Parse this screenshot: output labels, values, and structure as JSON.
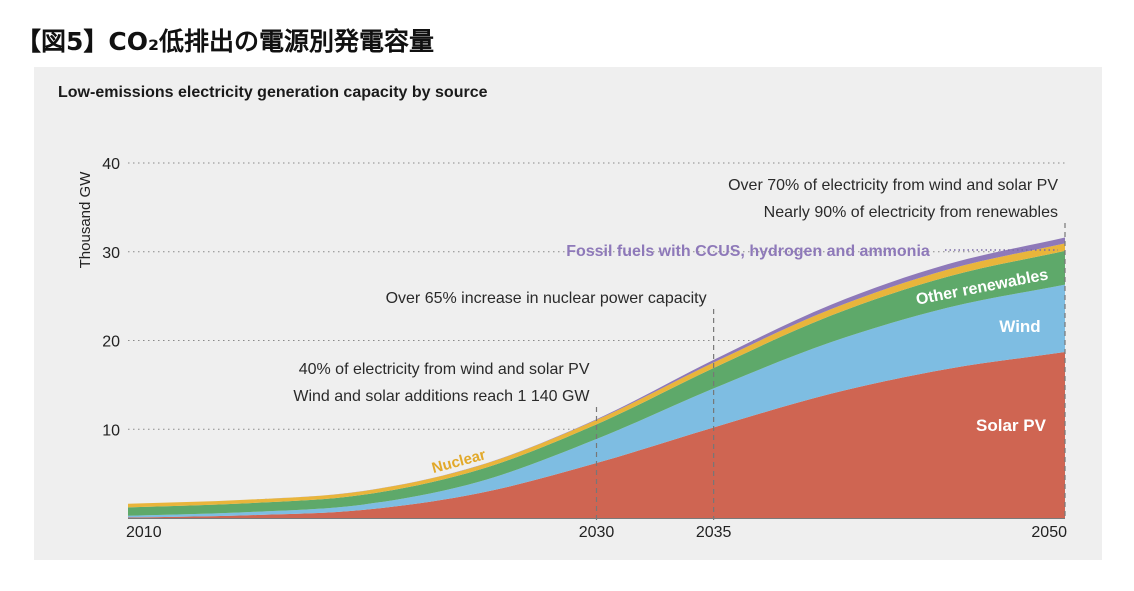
{
  "page": {
    "title": "【図5】CO₂低排出の電源別発電容量"
  },
  "chart_data": {
    "type": "area",
    "stacked": true,
    "title": "Low-emissions electricity generation capacity by source",
    "ylabel": "Thousand GW",
    "xlabel": "",
    "ylim": [
      0,
      40
    ],
    "xlim": [
      2010,
      2050
    ],
    "yticks": [
      10,
      20,
      30,
      40
    ],
    "xticks": [
      2010,
      2030,
      2035,
      2050
    ],
    "grid": "horizontal dotted",
    "x": [
      2010,
      2015,
      2020,
      2025,
      2030,
      2035,
      2040,
      2045,
      2050
    ],
    "series": [
      {
        "name": "Solar PV",
        "color": "#cf6552",
        "values": [
          0.05,
          0.3,
          0.9,
          2.8,
          6.2,
          10.2,
          14.0,
          16.8,
          18.7
        ]
      },
      {
        "name": "Wind",
        "color": "#7ebde2",
        "values": [
          0.2,
          0.35,
          0.6,
          1.3,
          2.7,
          4.4,
          5.8,
          6.9,
          7.6
        ]
      },
      {
        "name": "Other renewables",
        "color": "#5ea96a",
        "values": [
          0.95,
          1.0,
          1.1,
          1.35,
          1.65,
          2.3,
          3.0,
          3.5,
          3.8
        ]
      },
      {
        "name": "Nuclear",
        "color": "#e9b53b",
        "values": [
          0.4,
          0.4,
          0.42,
          0.45,
          0.5,
          0.62,
          0.72,
          0.8,
          0.85
        ]
      },
      {
        "name": "Fossil fuels with CCUS, hydrogen and ammonia",
        "color": "#8e79b9",
        "values": [
          0.0,
          0.0,
          0.01,
          0.03,
          0.08,
          0.3,
          0.5,
          0.6,
          0.65
        ]
      }
    ],
    "series_labels": [
      {
        "text": "Solar PV",
        "color": "#ffffff"
      },
      {
        "text": "Wind",
        "color": "#ffffff"
      },
      {
        "text": "Other renewables",
        "color": "#ffffff"
      },
      {
        "text": "Nuclear",
        "color": "#e2a92a"
      },
      {
        "text": "Fossil fuels with CCUS, hydrogen and ammonia",
        "color": "#8e79b9"
      }
    ],
    "markers": [
      {
        "year": 2030,
        "lines": [
          "40% of electricity from wind and solar PV",
          "Wind and solar additions reach 1 140 GW"
        ]
      },
      {
        "year": 2035,
        "lines": [
          "Over 65% increase in nuclear power capacity"
        ]
      },
      {
        "year": 2050,
        "lines": [
          "Over 70% of electricity from wind and solar PV",
          "Nearly 90% of electricity from renewables"
        ]
      }
    ]
  }
}
